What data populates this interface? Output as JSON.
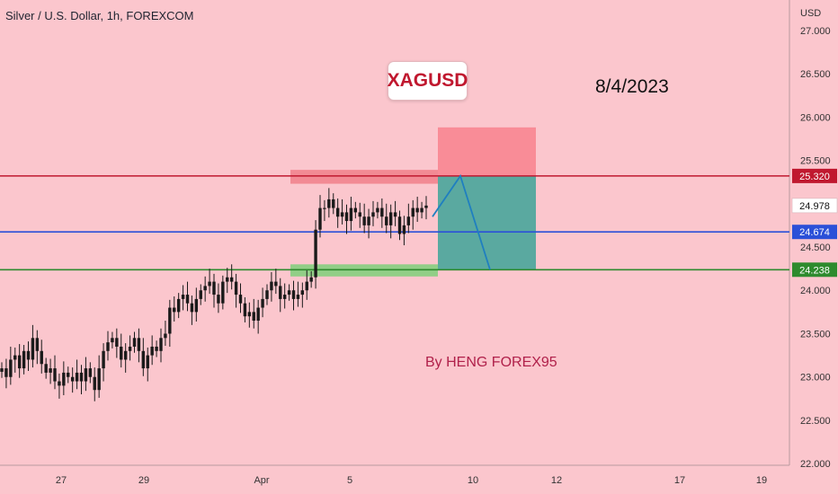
{
  "header": {
    "title": "Silver / U.S. Dollar, 1h, FOREXCOM",
    "currency": "USD"
  },
  "annotations": {
    "symbol": "XAGUSD",
    "date": "8/4/2023",
    "author": "By HENG FOREX95"
  },
  "colors": {
    "background": "#fbc6cd",
    "resistance": "#c0182f",
    "pivot": "#2b50d8",
    "support": "#2e8b2e",
    "stop_zone": "#f98c97",
    "target_zone": "#5aa9a0",
    "projection": "#1f7fc0",
    "candle_up": "#1a1a1a",
    "candle_down": "#1a1a1a"
  },
  "chart_data": {
    "type": "candlestick",
    "x_tick_labels": [
      "27",
      "29",
      "Apr",
      "5",
      "10",
      "12",
      "17",
      "19"
    ],
    "y_ticks": [
      "27.000",
      "26.500",
      "26.000",
      "25.500",
      "25.000",
      "24.500",
      "24.000",
      "23.500",
      "23.000",
      "22.500",
      "22.000"
    ],
    "ylim": [
      21.65,
      27.35
    ],
    "price_levels": [
      {
        "label": "25.320",
        "value": 25.32,
        "role": "resistance"
      },
      {
        "label": "24.674",
        "value": 24.674,
        "role": "pivot"
      },
      {
        "label": "24.238",
        "value": 24.238,
        "role": "support"
      }
    ],
    "last_price": {
      "label": "24.978",
      "value": 24.978
    },
    "stop_zone": {
      "price_top": 25.88,
      "price_bottom": 25.32
    },
    "target_zone": {
      "price_top": 25.32,
      "price_bottom": 24.238
    },
    "resistance_zone": {
      "price_top": 25.39,
      "price_bottom": 25.23
    },
    "support_zone": {
      "price_top": 24.3,
      "price_bottom": 24.16
    },
    "projection": [
      24.85,
      25.32,
      24.238
    ],
    "price_path": [
      23.1,
      23.0,
      23.2,
      23.25,
      23.1,
      23.3,
      23.2,
      23.45,
      23.3,
      23.15,
      23.05,
      23.1,
      22.95,
      22.9,
      23.05,
      23.0,
      22.95,
      23.05,
      22.95,
      23.1,
      23.0,
      22.85,
      23.1,
      23.3,
      23.4,
      23.45,
      23.35,
      23.2,
      23.3,
      23.35,
      23.45,
      23.3,
      23.1,
      23.25,
      23.35,
      23.3,
      23.45,
      23.5,
      23.8,
      23.75,
      23.9,
      23.95,
      23.85,
      23.75,
      23.9,
      24.0,
      24.05,
      24.1,
      23.95,
      23.85,
      24.1,
      24.15,
      24.1,
      23.95,
      23.85,
      23.7,
      23.75,
      23.65,
      23.8,
      23.9,
      24.0,
      24.1,
      24.05,
      23.9,
      23.95,
      24.0,
      23.9,
      23.95,
      24.0,
      24.1,
      24.15,
      24.7,
      24.95,
      24.95,
      25.05,
      24.95,
      24.85,
      24.9,
      24.8,
      24.95,
      24.9,
      24.85,
      24.75,
      24.85,
      24.9,
      24.95,
      24.85,
      24.75,
      24.9,
      24.85,
      24.65,
      24.75,
      24.85,
      24.95,
      24.9,
      24.95,
      24.978
    ]
  }
}
